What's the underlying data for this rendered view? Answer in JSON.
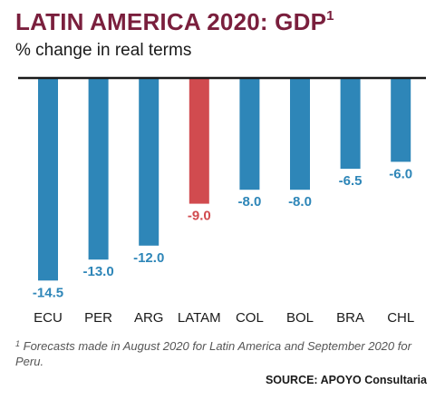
{
  "title": "LATIN AMERICA 2020: GDP",
  "title_superscript": "1",
  "subtitle": "% change in real terms",
  "footnote_marker": "1",
  "footnote": "Forecasts made in August 2020 for Latin America and September 2020 for Peru.",
  "source": "SOURCE: APOYO Consultaria",
  "colors": {
    "title": "#7a1f3d",
    "bar": "#2e86b8",
    "highlight_bar": "#d14b4f",
    "axis": "#1a1a1a"
  },
  "chart_data": {
    "type": "bar",
    "title": "LATIN AMERICA 2020: GDP",
    "subtitle": "% change in real terms",
    "categories": [
      "ECU",
      "PER",
      "ARG",
      "LATAM",
      "COL",
      "BOL",
      "BRA",
      "CHL"
    ],
    "values": [
      -14.5,
      -13.0,
      -12.0,
      -9.0,
      -8.0,
      -8.0,
      -6.5,
      -6.0
    ],
    "value_labels": [
      "-14.5",
      "-13.0",
      "-12.0",
      "-9.0",
      "-8.0",
      "-8.0",
      "-6.5",
      "-6.0"
    ],
    "highlight": "LATAM",
    "xlabel": "",
    "ylabel": "",
    "ylim": [
      -14.5,
      0
    ],
    "grid": false,
    "legend": "none"
  }
}
